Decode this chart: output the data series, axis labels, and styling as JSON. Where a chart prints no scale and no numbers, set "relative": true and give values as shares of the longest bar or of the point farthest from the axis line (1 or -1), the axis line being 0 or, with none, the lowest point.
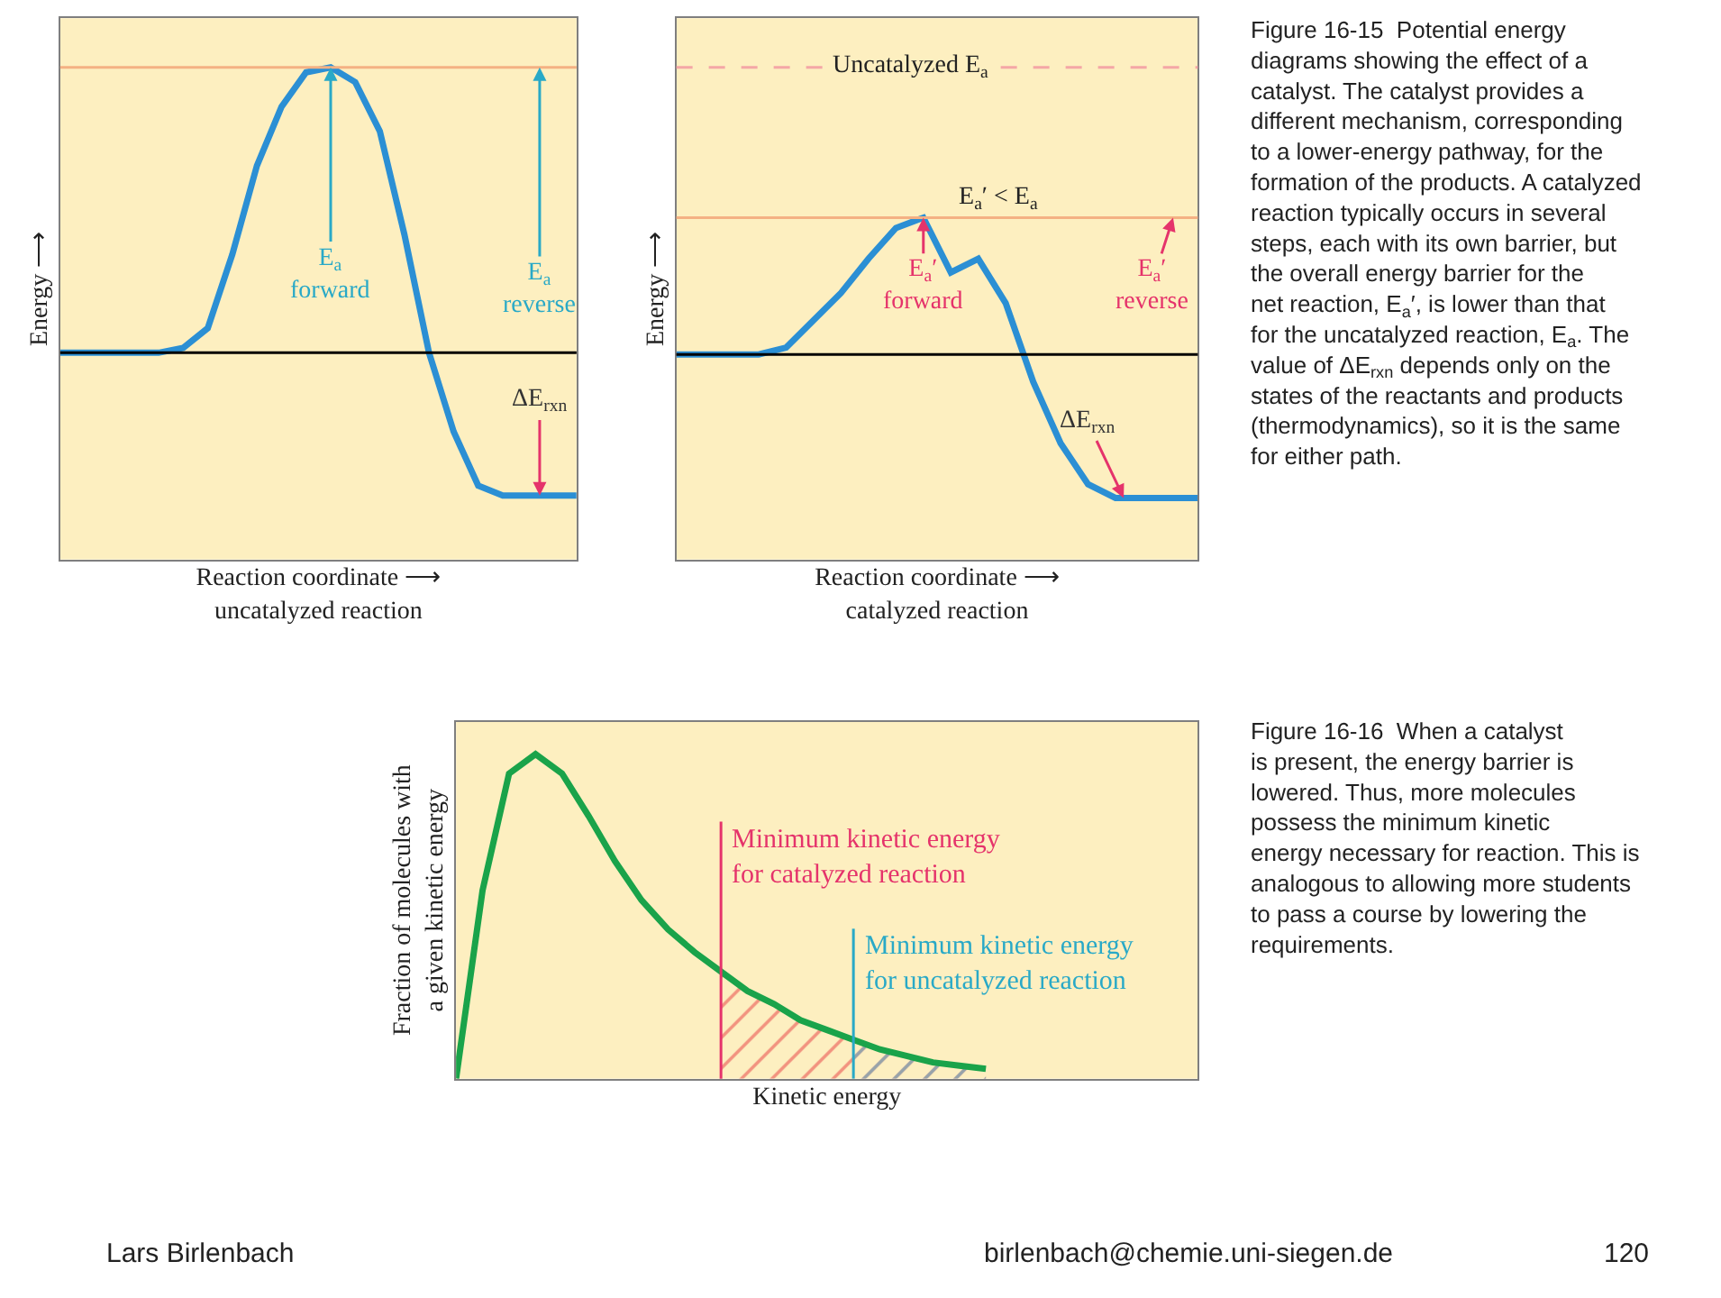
{
  "chart_data": [
    {
      "type": "line",
      "relative": true,
      "xlabel": "Reaction coordinate ⟶\nuncatalyzed reaction",
      "ylabel": "Energy ⟶",
      "categories": [
        null,
        null,
        null,
        null,
        null,
        null,
        null,
        null,
        null,
        null,
        null,
        null,
        null,
        null,
        null,
        null,
        null,
        null,
        null,
        null,
        null,
        null
      ],
      "series": [
        {
          "color": "#2b8fd4",
          "values": [
            0.42,
            0.42,
            0.42,
            0.42,
            0.42,
            0.43,
            0.47,
            0.62,
            0.8,
            0.92,
            0.99,
            1.0,
            0.97,
            0.87,
            0.66,
            0.42,
            0.26,
            0.15,
            0.13,
            0.13,
            0.13,
            0.13
          ]
        }
      ],
      "ref_lines": [
        {
          "axis": "y",
          "value": 1.0,
          "color": "#f4b183"
        },
        {
          "axis": "y",
          "value": 0.42,
          "color": "#000000"
        }
      ],
      "annotations": [
        {
          "text": "E$_{a}$\nforward",
          "y": 1.0
        },
        {
          "text": "E$_{a}$\nreverse",
          "y": 1.0
        },
        "ΔE$_{rxn}$"
      ]
    },
    {
      "type": "line",
      "relative": true,
      "xlabel": "Reaction coordinate ⟶\ncatalyzed reaction",
      "ylabel": "Energy ⟶",
      "categories": [
        null,
        null,
        null,
        null,
        null,
        null,
        null,
        null,
        null,
        null,
        null,
        null,
        null,
        null,
        null,
        null,
        null,
        null,
        null,
        null
      ],
      "series": [
        {
          "color": "#2b8fd4",
          "values": [
            0.6,
            0.6,
            0.6,
            0.6,
            0.62,
            0.7,
            0.78,
            0.88,
            0.97,
            1.0,
            0.84,
            0.88,
            0.75,
            0.52,
            0.34,
            0.22,
            0.18,
            0.18,
            0.18,
            0.18
          ]
        }
      ],
      "ref_lines": [
        {
          "axis": "y",
          "value": 1.44,
          "color": "#f4a6a6",
          "line_style": "dashed",
          "label": "Uncatalyzed E$_{a}$"
        },
        {
          "axis": "y",
          "value": 1.0,
          "color": "#f4b183",
          "label": "E$_{a}$′ < E$_{a}$"
        },
        {
          "axis": "y",
          "value": 0.6,
          "color": "#000000"
        }
      ],
      "annotations": [
        {
          "text": "E$_{a}$′\nforward",
          "y": 1.0
        },
        {
          "text": "E$_{a}$′\nreverse",
          "y": 1.0
        },
        "ΔE$_{rxn}$",
        "Figure 16-15  Potential energy\ndiagrams showing the effect of a\ncatalyst. The catalyst provides a\ndifferent mechanism, corresponding\nto a lower-energy pathway, for the\nformation of the products. A catalyzed\nreaction typically occurs in several\nsteps, each with its own barrier, but\nthe overall energy barrier for the\nnet reaction, E$_{a}$′, is lower than that\nfor the uncatalyzed reaction, E$_{a}$. The\nvalue of ΔE$_{rxn}$ depends only on the\nstates of the reactants and products\n(thermodynamics), so it is the same\nfor either path."
      ]
    },
    {
      "type": "line",
      "relative": true,
      "xlabel": "Kinetic energy",
      "ylabel": "Fraction of molecules with\na given kinetic energy",
      "categories": [
        null,
        null,
        null,
        null,
        null,
        null,
        null,
        null,
        null,
        null,
        null,
        null,
        null,
        null,
        null,
        null,
        null,
        null,
        null,
        null,
        null,
        null,
        null,
        null,
        null,
        null,
        null,
        null,
        null
      ],
      "series": [
        {
          "type": "area",
          "color": "#e8383d",
          "values": [
            null,
            null,
            null,
            null,
            null,
            null,
            null,
            null,
            null,
            null,
            0.33,
            0.27,
            0.23,
            0.18,
            0.15,
            0.12,
            0.09,
            0.07,
            0.05,
            0.04,
            0.03,
            null,
            null,
            null,
            null,
            null,
            null,
            null,
            null
          ]
        },
        {
          "type": "area",
          "color": "#3bb3d6",
          "values": [
            null,
            null,
            null,
            null,
            null,
            null,
            null,
            null,
            null,
            null,
            null,
            null,
            null,
            null,
            null,
            0.12,
            0.09,
            0.07,
            0.05,
            0.04,
            0.03,
            null,
            null,
            null,
            null,
            null,
            null,
            null,
            null
          ]
        },
        {
          "color": "#1aa34a",
          "values": [
            0,
            0.58,
            0.94,
            1.0,
            0.94,
            0.81,
            0.67,
            0.55,
            0.46,
            0.39,
            0.33,
            0.27,
            0.23,
            0.18,
            0.15,
            0.12,
            0.09,
            0.07,
            0.05,
            0.04,
            0.03,
            null,
            null,
            null,
            null,
            null,
            null,
            null,
            null
          ]
        }
      ],
      "annotations": [
        "Minimum kinetic energy\nfor catalyzed reaction",
        "Minimum kinetic energy\nfor uncatalyzed reaction",
        "Figure 16-16  When a catalyst\nis present, the energy barrier is\nlowered. Thus, more molecules\npossess the minimum kinetic\nenergy necessary for reaction. This is\nanalogous to allowing more students\nto pass a course by lowering the\nrequirements.",
        "Lars Birlenbach",
        "birlenbach@chemie.uni-siegen.de",
        "120"
      ]
    }
  ]
}
